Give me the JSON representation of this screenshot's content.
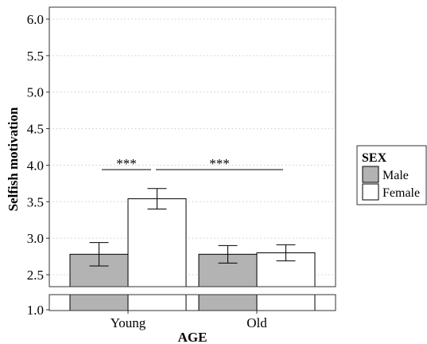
{
  "chart_data": {
    "type": "bar",
    "xlabel": "AGE",
    "ylabel": "Selfish motivation",
    "categories": [
      "Young",
      "Old"
    ],
    "series": [
      {
        "name": "Male",
        "color": "#b3b3b3",
        "values": [
          2.78,
          2.78
        ],
        "error": [
          0.16,
          0.12
        ]
      },
      {
        "name": "Female",
        "color": "#ffffff",
        "values": [
          3.54,
          2.8
        ],
        "error": [
          0.14,
          0.11
        ]
      }
    ],
    "ylim": [
      2.33,
      6.1
    ],
    "yticks": [
      "6.0",
      "5.5",
      "5.0",
      "4.5",
      "4.0",
      "3.5",
      "3.0",
      "2.5"
    ],
    "ytick_values": [
      6.0,
      5.5,
      5.0,
      4.5,
      4.0,
      3.5,
      3.0,
      2.5
    ],
    "axis_break": {
      "lower_tick": "1.0"
    },
    "grid": "horizontal-dotted",
    "legend": {
      "title": "SEX",
      "placement": "right"
    },
    "annotations": [
      {
        "text": "***",
        "from": "Young-Male",
        "to": "Young-Female"
      },
      {
        "text": "***",
        "from": "Young-Female",
        "to": "Old-Male"
      }
    ]
  }
}
